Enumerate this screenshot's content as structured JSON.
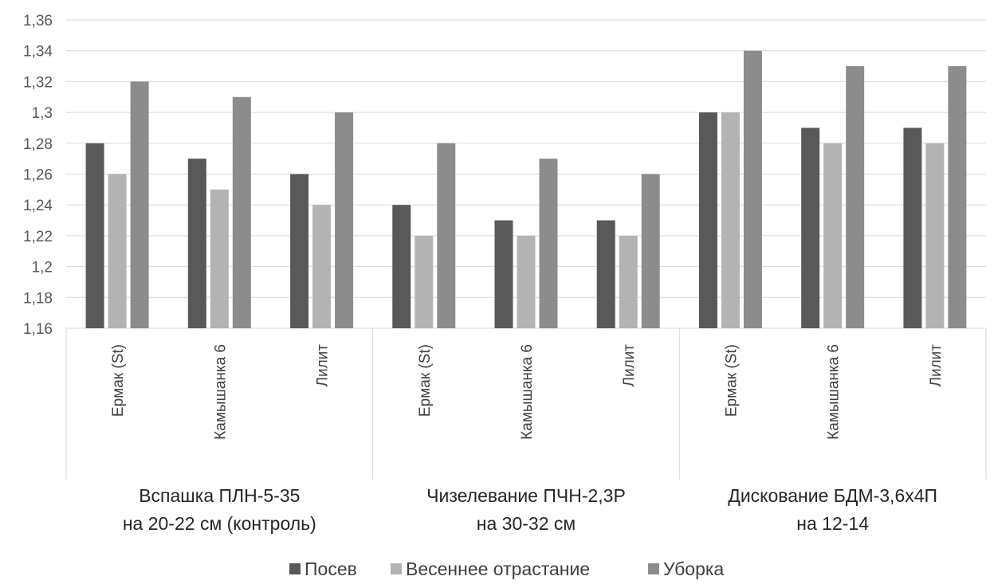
{
  "chart_data": {
    "type": "bar",
    "groups": [
      {
        "label_lines": [
          "Вспашка ПЛН-5-35",
          "на 20-22 см (контроль)"
        ],
        "categories": [
          "Ермак (St)",
          "Камышанка 6",
          "Лилит"
        ]
      },
      {
        "label_lines": [
          "Чизелевание ПЧН-2,3Р",
          "на 30-32 см"
        ],
        "categories": [
          "Ермак (St)",
          "Камышанка 6",
          "Лилит"
        ]
      },
      {
        "label_lines": [
          "Дискование БДМ-3,6х4П",
          "на 12-14"
        ],
        "categories": [
          "Ермак (St)",
          "Камышанка 6",
          "Лилит"
        ]
      }
    ],
    "series": [
      {
        "name": "Посев",
        "color": "#595959",
        "values": [
          1.28,
          1.27,
          1.26,
          1.24,
          1.23,
          1.23,
          1.3,
          1.29,
          1.29
        ]
      },
      {
        "name": "Весеннее отрастание",
        "color": "#b3b3b3",
        "values": [
          1.26,
          1.25,
          1.24,
          1.22,
          1.22,
          1.22,
          1.3,
          1.28,
          1.28
        ]
      },
      {
        "name": "Уборка",
        "color": "#8c8c8c",
        "values": [
          1.32,
          1.31,
          1.3,
          1.28,
          1.27,
          1.26,
          1.34,
          1.33,
          1.33
        ]
      }
    ],
    "ylim": [
      1.16,
      1.36
    ],
    "yticks": [
      "1,16",
      "1,18",
      "1,2",
      "1,22",
      "1,24",
      "1,26",
      "1,28",
      "1,3",
      "1,32",
      "1,34",
      "1,36"
    ],
    "ytick_values": [
      1.16,
      1.18,
      1.2,
      1.22,
      1.24,
      1.26,
      1.28,
      1.3,
      1.32,
      1.34,
      1.36
    ],
    "grid": true,
    "legend_position": "bottom"
  }
}
